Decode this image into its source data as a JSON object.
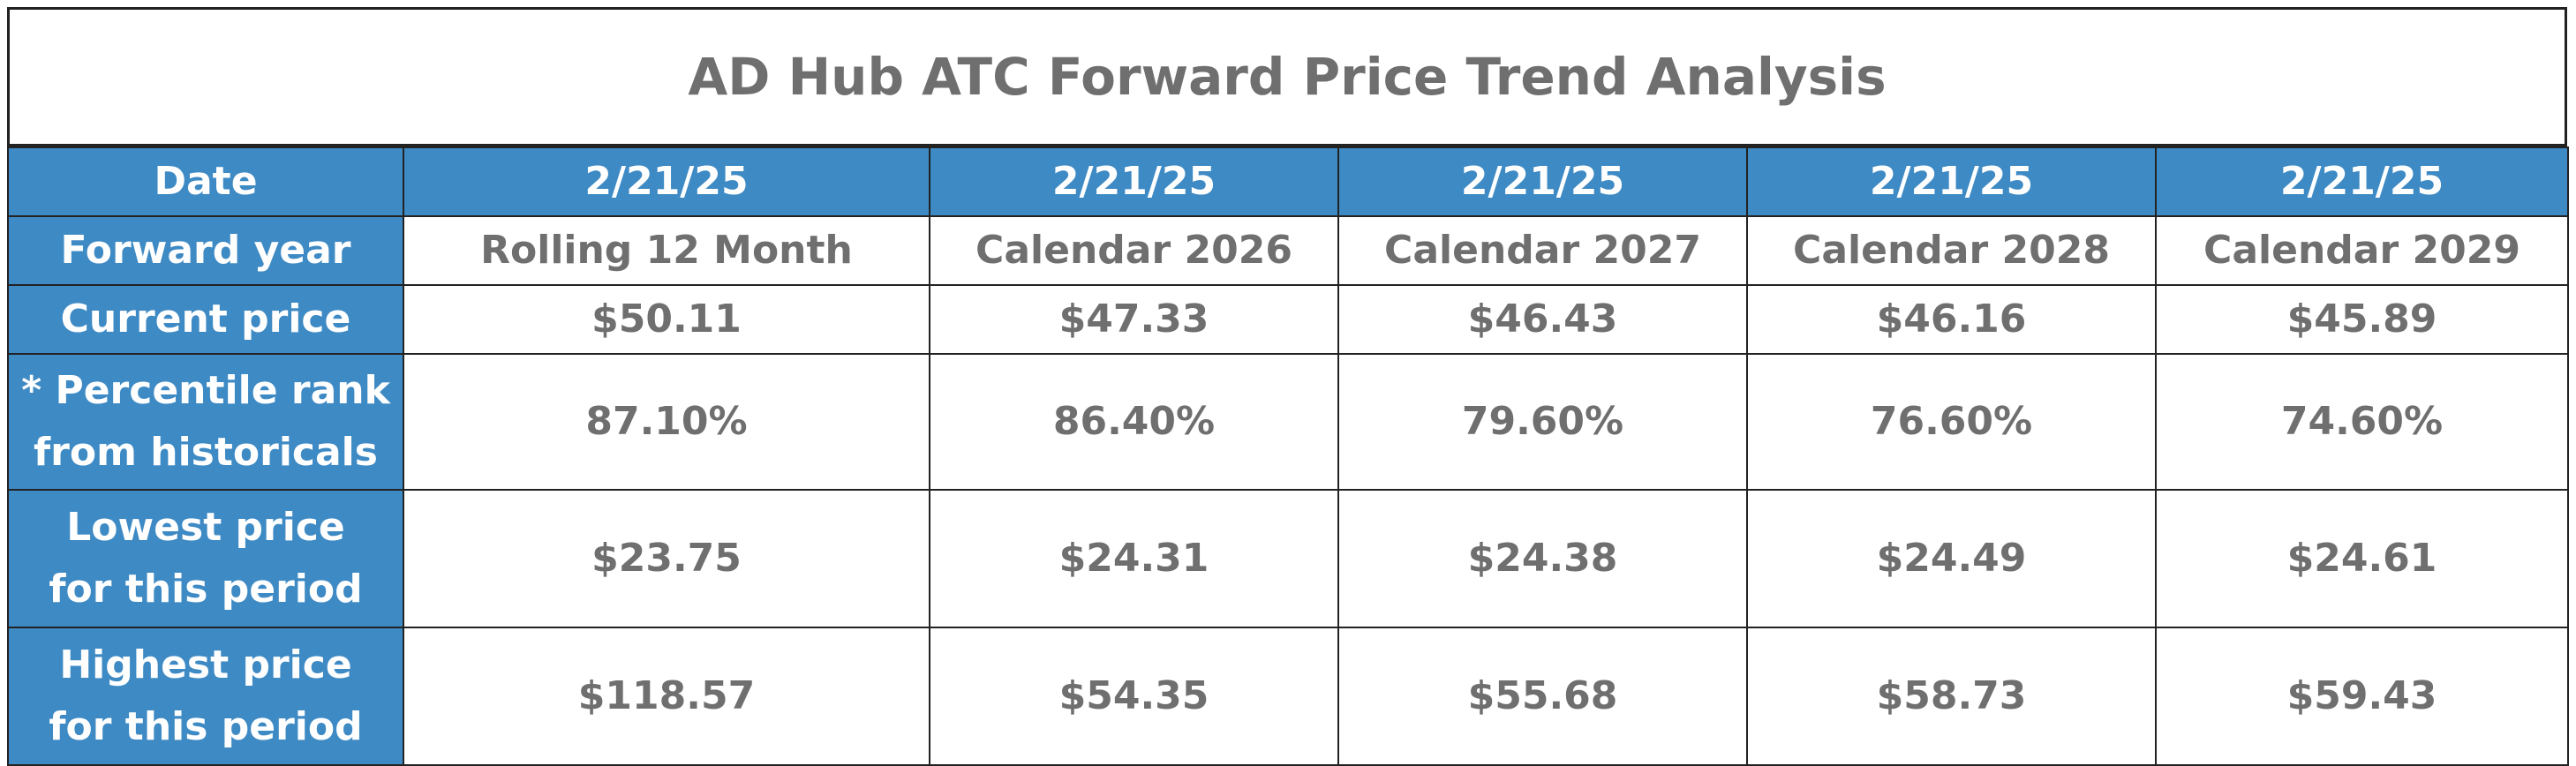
{
  "title": "AD Hub ATC Forward Price Trend Analysis",
  "row_labels": {
    "date": "Date",
    "forward_year": "Forward year",
    "current_price": "Current price",
    "percentile_line1": "* Percentile rank",
    "percentile_line2": "from historicals",
    "lowest_line1": "Lowest price",
    "lowest_line2": "for this period",
    "highest_line1": "Highest price",
    "highest_line2": "for this period"
  },
  "columns": [
    {
      "date": "2/21/25",
      "forward_year": "Rolling 12 Month",
      "current_price": "$50.11",
      "percentile": "87.10%",
      "lowest": "$23.75",
      "highest": "$118.57"
    },
    {
      "date": "2/21/25",
      "forward_year": "Calendar 2026",
      "current_price": "$47.33",
      "percentile": "86.40%",
      "lowest": "$24.31",
      "highest": "$54.35"
    },
    {
      "date": "2/21/25",
      "forward_year": "Calendar 2027",
      "current_price": "$46.43",
      "percentile": "79.60%",
      "lowest": "$24.38",
      "highest": "$55.68"
    },
    {
      "date": "2/21/25",
      "forward_year": "Calendar 2028",
      "current_price": "$46.16",
      "percentile": "76.60%",
      "lowest": "$24.49",
      "highest": "$58.73"
    },
    {
      "date": "2/21/25",
      "forward_year": "Calendar 2029",
      "current_price": "$45.89",
      "percentile": "74.60%",
      "lowest": "$24.61",
      "highest": "$59.43"
    }
  ],
  "colors": {
    "header_blue": "#3e8ac4",
    "header_text": "#ffffff",
    "body_text": "#6f6f6f",
    "border": "#222222"
  }
}
